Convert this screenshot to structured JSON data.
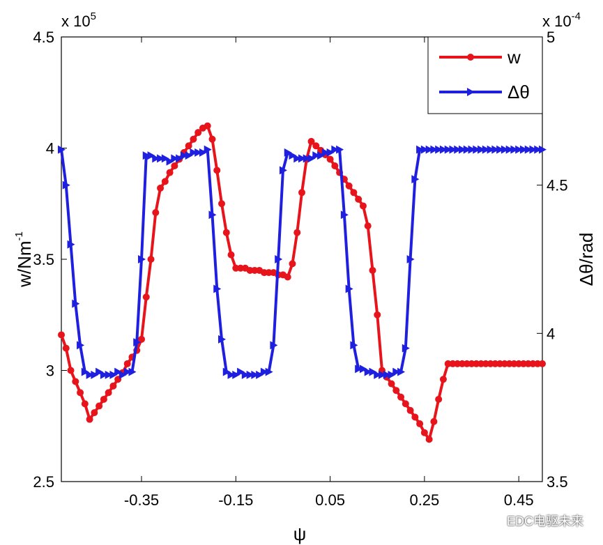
{
  "chart_data": {
    "type": "line",
    "xlabel": "ψ",
    "ylabel_left": "w/Nm",
    "ylabel_left_sup": "-1",
    "ylabel_right": "Δθ/rad",
    "left_multiplier_base": "x 10",
    "left_multiplier_exp": "5",
    "right_multiplier_base": "x 10",
    "right_multiplier_exp": "-4",
    "xlim": [
      -0.52,
      0.5
    ],
    "ylim_left": [
      2.5,
      4.5
    ],
    "ylim_right": [
      3.5,
      5.0
    ],
    "x_ticks": [
      -0.35,
      -0.15,
      0.05,
      0.25,
      0.45
    ],
    "x_tick_labels": [
      "-0.35",
      "-0.15",
      "0.05",
      "0.25",
      "0.45"
    ],
    "y_left_ticks": [
      2.5,
      3,
      3.5,
      4,
      4.5
    ],
    "y_left_tick_labels": [
      "2.5",
      "3",
      "3.5",
      "4",
      "4.5"
    ],
    "y_right_ticks": [
      3.5,
      4,
      4.5,
      5
    ],
    "y_right_tick_labels": [
      "3.5",
      "4",
      "4.5",
      "5"
    ],
    "legend_position": "top-right",
    "series": [
      {
        "name": "w",
        "axis": "left",
        "color": "#e8141b",
        "marker": "circle",
        "x": [
          -0.52,
          -0.51,
          -0.5,
          -0.49,
          -0.48,
          -0.47,
          -0.46,
          -0.45,
          -0.44,
          -0.43,
          -0.42,
          -0.41,
          -0.4,
          -0.39,
          -0.38,
          -0.37,
          -0.36,
          -0.35,
          -0.34,
          -0.33,
          -0.32,
          -0.31,
          -0.3,
          -0.29,
          -0.28,
          -0.27,
          -0.26,
          -0.25,
          -0.24,
          -0.23,
          -0.22,
          -0.21,
          -0.2,
          -0.19,
          -0.18,
          -0.17,
          -0.16,
          -0.15,
          -0.14,
          -0.13,
          -0.12,
          -0.11,
          -0.1,
          -0.09,
          -0.08,
          -0.07,
          -0.06,
          -0.05,
          -0.04,
          -0.03,
          -0.02,
          -0.01,
          0.0,
          0.01,
          0.02,
          0.03,
          0.04,
          0.05,
          0.06,
          0.07,
          0.08,
          0.09,
          0.1,
          0.11,
          0.12,
          0.13,
          0.14,
          0.15,
          0.16,
          0.17,
          0.18,
          0.19,
          0.2,
          0.21,
          0.22,
          0.23,
          0.24,
          0.25,
          0.26,
          0.27,
          0.28,
          0.29,
          0.3,
          0.31,
          0.32,
          0.33,
          0.34,
          0.35,
          0.36,
          0.37,
          0.38,
          0.39,
          0.4,
          0.41,
          0.42,
          0.43,
          0.44,
          0.45,
          0.46,
          0.47,
          0.48,
          0.49,
          0.5
        ],
        "values": [
          3.16,
          3.1,
          3.0,
          2.95,
          2.9,
          2.85,
          2.78,
          2.81,
          2.84,
          2.87,
          2.9,
          2.93,
          2.96,
          2.99,
          3.03,
          3.06,
          3.09,
          3.14,
          3.33,
          3.5,
          3.71,
          3.82,
          3.85,
          3.89,
          3.92,
          3.95,
          3.98,
          4.01,
          4.04,
          4.07,
          4.09,
          4.1,
          4.04,
          3.9,
          3.75,
          3.62,
          3.52,
          3.46,
          3.46,
          3.46,
          3.45,
          3.45,
          3.45,
          3.44,
          3.44,
          3.44,
          3.43,
          3.43,
          3.42,
          3.48,
          3.62,
          3.8,
          3.95,
          4.03,
          4.01,
          3.99,
          3.97,
          3.95,
          3.92,
          3.89,
          3.86,
          3.83,
          3.8,
          3.77,
          3.74,
          3.65,
          3.45,
          3.25,
          3.0,
          2.97,
          2.94,
          2.91,
          2.88,
          2.85,
          2.82,
          2.79,
          2.76,
          2.72,
          2.69,
          2.77,
          2.87,
          2.96,
          3.03,
          3.03,
          3.03,
          3.03,
          3.03,
          3.03,
          3.03,
          3.03,
          3.03,
          3.03,
          3.03,
          3.03,
          3.03,
          3.03,
          3.03,
          3.03,
          3.03,
          3.03,
          3.03,
          3.03,
          3.03
        ]
      },
      {
        "name": "Δθ",
        "axis": "right",
        "color": "#1f1fe0",
        "marker": "triangle-right",
        "x": [
          -0.52,
          -0.51,
          -0.5,
          -0.49,
          -0.48,
          -0.47,
          -0.46,
          -0.45,
          -0.44,
          -0.43,
          -0.42,
          -0.41,
          -0.4,
          -0.39,
          -0.38,
          -0.37,
          -0.36,
          -0.35,
          -0.34,
          -0.33,
          -0.32,
          -0.31,
          -0.3,
          -0.29,
          -0.28,
          -0.27,
          -0.26,
          -0.25,
          -0.24,
          -0.23,
          -0.22,
          -0.21,
          -0.2,
          -0.19,
          -0.18,
          -0.17,
          -0.16,
          -0.15,
          -0.14,
          -0.13,
          -0.12,
          -0.11,
          -0.1,
          -0.09,
          -0.08,
          -0.07,
          -0.06,
          -0.05,
          -0.04,
          -0.03,
          -0.02,
          -0.01,
          0.0,
          0.01,
          0.02,
          0.03,
          0.04,
          0.05,
          0.06,
          0.07,
          0.08,
          0.09,
          0.1,
          0.11,
          0.12,
          0.13,
          0.14,
          0.15,
          0.16,
          0.17,
          0.18,
          0.19,
          0.2,
          0.21,
          0.22,
          0.23,
          0.24,
          0.25,
          0.26,
          0.27,
          0.28,
          0.29,
          0.3,
          0.31,
          0.32,
          0.33,
          0.34,
          0.35,
          0.36,
          0.37,
          0.38,
          0.39,
          0.4,
          0.41,
          0.42,
          0.43,
          0.44,
          0.45,
          0.46,
          0.47,
          0.48,
          0.49,
          0.5
        ],
        "values": [
          4.62,
          4.5,
          4.3,
          4.1,
          3.96,
          3.87,
          3.86,
          3.86,
          3.87,
          3.86,
          3.86,
          3.86,
          3.87,
          3.86,
          3.87,
          3.87,
          3.97,
          4.25,
          4.6,
          4.6,
          4.59,
          4.59,
          4.59,
          4.58,
          4.59,
          4.59,
          4.6,
          4.6,
          4.61,
          4.61,
          4.61,
          4.62,
          4.4,
          4.15,
          3.98,
          3.87,
          3.86,
          3.86,
          3.87,
          3.86,
          3.86,
          3.86,
          3.86,
          3.87,
          3.87,
          3.96,
          4.25,
          4.55,
          4.61,
          4.6,
          4.59,
          4.59,
          4.59,
          4.59,
          4.6,
          4.6,
          4.61,
          4.61,
          4.62,
          4.62,
          4.4,
          4.15,
          3.96,
          3.88,
          3.88,
          3.87,
          3.87,
          3.86,
          3.86,
          3.86,
          3.86,
          3.87,
          3.87,
          3.95,
          4.25,
          4.52,
          4.62,
          4.62,
          4.62,
          4.62,
          4.62,
          4.62,
          4.62,
          4.62,
          4.62,
          4.62,
          4.62,
          4.62,
          4.62,
          4.62,
          4.62,
          4.62,
          4.62,
          4.62,
          4.62,
          4.62,
          4.62,
          4.62,
          4.62,
          4.62,
          4.62,
          4.62,
          4.62
        ]
      }
    ]
  },
  "watermark": "EDC电驱未来"
}
